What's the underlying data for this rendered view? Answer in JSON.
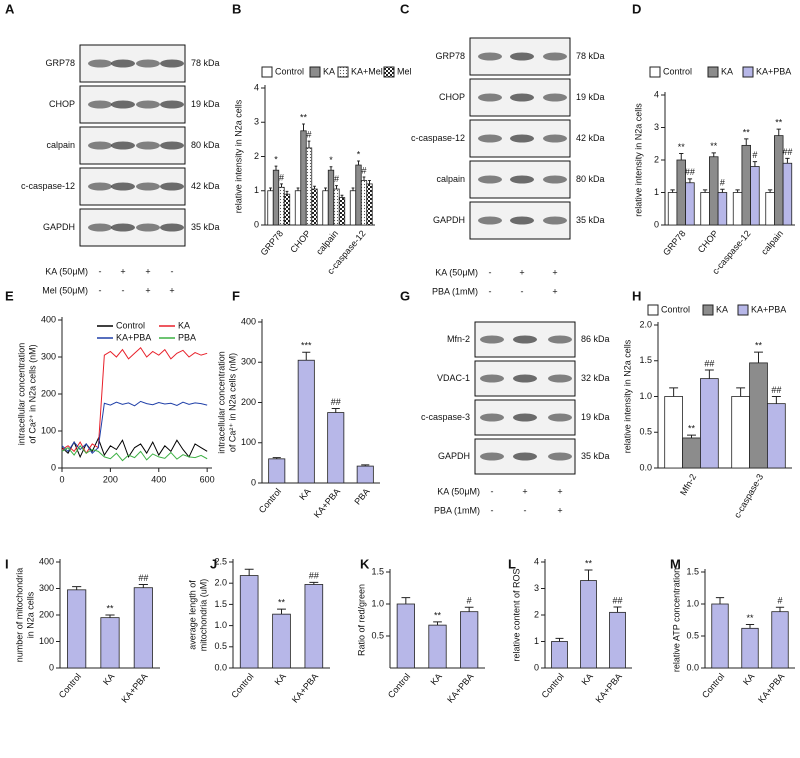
{
  "blots": [
    {
      "panel": "A",
      "rows": [
        {
          "label": "GRP78",
          "kda": "78 kDa"
        },
        {
          "label": "CHOP",
          "kda": "19 kDa"
        },
        {
          "label": "calpain",
          "kda": "80 kDa"
        },
        {
          "label": "c-caspase-12",
          "kda": "42 kDa"
        },
        {
          "label": "GAPDH",
          "kda": "35 kDa"
        }
      ],
      "treatments": [
        {
          "label": "KA (50μM)",
          "signs": [
            "-",
            "+",
            "+",
            "-"
          ]
        },
        {
          "label": "Mel (50μM)",
          "signs": [
            "-",
            "-",
            "+",
            "+"
          ]
        }
      ]
    },
    {
      "panel": "C",
      "rows": [
        {
          "label": "GRP78",
          "kda": "78 kDa"
        },
        {
          "label": "CHOP",
          "kda": "19 kDa"
        },
        {
          "label": "c-caspase-12",
          "kda": "42 kDa"
        },
        {
          "label": "calpain",
          "kda": "80 kDa"
        },
        {
          "label": "GAPDH",
          "kda": "35 kDa"
        }
      ],
      "treatments": [
        {
          "label": "KA (50μM)",
          "signs": [
            "-",
            "+",
            "+"
          ]
        },
        {
          "label": "PBA (1mM)",
          "signs": [
            "-",
            "-",
            "+"
          ]
        }
      ]
    },
    {
      "panel": "G",
      "rows": [
        {
          "label": "Mfn-2",
          "kda": "86 kDa"
        },
        {
          "label": "VDAC-1",
          "kda": "32 kDa"
        },
        {
          "label": "c-caspase-3",
          "kda": "19 kDa"
        },
        {
          "label": "GAPDH",
          "kda": "35 kDa"
        }
      ],
      "treatments": [
        {
          "label": "KA (50μM)",
          "signs": [
            "-",
            "+",
            "+"
          ]
        },
        {
          "label": "PBA (1mM)",
          "signs": [
            "-",
            "-",
            "+"
          ]
        }
      ]
    }
  ],
  "chart_data": [
    {
      "type": "bar",
      "panel": "B",
      "ylabel": [
        "relative intensity in N2a cells"
      ],
      "categories": [
        "GRP78",
        "CHOP",
        "calpain",
        "c-caspase-12"
      ],
      "ylim": [
        0,
        4
      ],
      "yticks": [
        0,
        1,
        2,
        3,
        4
      ],
      "series": [
        {
          "name": "Control",
          "color": "#ffffff",
          "values": [
            1.0,
            1.0,
            1.0,
            1.0
          ],
          "errors": [
            0.08,
            0.08,
            0.08,
            0.08
          ]
        },
        {
          "name": "KA",
          "color": "#8c8c8c",
          "values": [
            1.6,
            2.75,
            1.6,
            1.75
          ],
          "errors": [
            0.12,
            0.2,
            0.1,
            0.12
          ],
          "marks": [
            "*",
            "**",
            "*",
            "*"
          ]
        },
        {
          "name": "KA+Mel",
          "color": "#ffffff",
          "pattern": "dots",
          "values": [
            1.1,
            2.25,
            1.05,
            1.3
          ],
          "errors": [
            0.1,
            0.2,
            0.1,
            0.1
          ],
          "marks": [
            "#",
            "#",
            "#",
            "#"
          ]
        },
        {
          "name": "Mel",
          "color": "#ffffff",
          "pattern": "checker",
          "values": [
            0.9,
            1.05,
            0.8,
            1.2
          ],
          "errors": [
            0.08,
            0.08,
            0.07,
            0.1
          ]
        }
      ]
    },
    {
      "type": "bar",
      "panel": "D",
      "ylabel": [
        "relative intensity in N2a cells"
      ],
      "categories": [
        "GRP78",
        "CHOP",
        "c-caspase-12",
        "calpain"
      ],
      "ylim": [
        0,
        4
      ],
      "yticks": [
        0,
        1,
        2,
        3,
        4
      ],
      "series": [
        {
          "name": "Control",
          "color": "#ffffff",
          "values": [
            1.0,
            1.0,
            1.0,
            1.0
          ],
          "errors": [
            0.08,
            0.08,
            0.08,
            0.08
          ]
        },
        {
          "name": "KA",
          "color": "#8c8c8c",
          "values": [
            2.0,
            2.1,
            2.45,
            2.75
          ],
          "errors": [
            0.2,
            0.12,
            0.2,
            0.2
          ],
          "marks": [
            "**",
            "**",
            "**",
            "**"
          ]
        },
        {
          "name": "KA+PBA",
          "color": "#b7b7e8",
          "values": [
            1.3,
            1.0,
            1.8,
            1.9
          ],
          "errors": [
            0.12,
            0.1,
            0.15,
            0.15
          ],
          "marks": [
            "##",
            "#",
            "#",
            "##"
          ]
        }
      ]
    },
    {
      "type": "line",
      "panel": "E",
      "ylabel": [
        "intracellular concentration",
        "of Ca²⁺ in N2a cells (nM)"
      ],
      "xlim": [
        0,
        620
      ],
      "xticks": [
        0,
        200,
        400,
        600
      ],
      "ylim": [
        0,
        400
      ],
      "yticks": [
        0,
        100,
        200,
        300,
        400
      ],
      "x": [
        0,
        25,
        50,
        75,
        100,
        125,
        150,
        175,
        200,
        225,
        250,
        275,
        300,
        325,
        350,
        375,
        400,
        425,
        450,
        475,
        500,
        525,
        550,
        575,
        600
      ],
      "series": [
        {
          "name": "Control",
          "color": "#000000",
          "values": [
            55,
            40,
            70,
            30,
            65,
            45,
            80,
            35,
            60,
            50,
            75,
            30,
            55,
            65,
            40,
            70,
            35,
            60,
            45,
            75,
            50,
            30,
            65,
            55,
            45
          ]
        },
        {
          "name": "KA",
          "color": "#e8202a",
          "values": [
            50,
            60,
            45,
            70,
            40,
            65,
            55,
            305,
            315,
            300,
            320,
            295,
            310,
            325,
            300,
            315,
            305,
            320,
            295,
            310,
            318,
            300,
            312,
            305,
            310
          ]
        },
        {
          "name": "KA+PBA",
          "color": "#1f3fa8",
          "values": [
            60,
            45,
            70,
            50,
            65,
            40,
            55,
            175,
            170,
            178,
            172,
            176,
            168,
            180,
            174,
            171,
            177,
            173,
            175,
            169,
            178,
            172,
            176,
            174,
            170
          ]
        },
        {
          "name": "PBA",
          "color": "#3cb043",
          "values": [
            45,
            55,
            35,
            60,
            40,
            50,
            45,
            30,
            25,
            40,
            20,
            35,
            28,
            45,
            22,
            38,
            30,
            26,
            42,
            24,
            36,
            30,
            28,
            34,
            25
          ]
        }
      ]
    },
    {
      "type": "bar",
      "panel": "F",
      "ylabel": [
        "intracellular concentration",
        "of Ca²⁺ in N2a cells (nM)"
      ],
      "categories": [
        "Control",
        "KA",
        "KA+PBA",
        "PBA"
      ],
      "ylim": [
        0,
        400
      ],
      "yticks": [
        0,
        100,
        200,
        300,
        400
      ],
      "color": "#b7b7e8",
      "values": [
        60,
        305,
        175,
        42
      ],
      "errors": [
        3,
        20,
        10,
        3
      ],
      "marks": [
        null,
        "***",
        "##",
        null
      ]
    },
    {
      "type": "bar",
      "panel": "H",
      "ylabel": [
        "relative intensity in N2a cells"
      ],
      "categories": [
        "Mfn-2",
        "c-caspase-3"
      ],
      "ylim": [
        0,
        2
      ],
      "yticks": [
        {
          "value": 0,
          "label": "0.0"
        },
        {
          "value": 0.5,
          "label": "0.5"
        },
        {
          "value": 1,
          "label": "1.0"
        },
        {
          "value": 1.5,
          "label": "1.5"
        },
        {
          "value": 2,
          "label": "2.0"
        }
      ],
      "series": [
        {
          "name": "Control",
          "color": "#ffffff",
          "values": [
            1.0,
            1.0
          ],
          "errors": [
            0.12,
            0.12
          ]
        },
        {
          "name": "KA",
          "color": "#8c8c8c",
          "values": [
            0.42,
            1.47
          ],
          "errors": [
            0.04,
            0.15
          ],
          "marks": [
            "**",
            "**"
          ]
        },
        {
          "name": "KA+PBA",
          "color": "#b7b7e8",
          "values": [
            1.25,
            0.9
          ],
          "errors": [
            0.12,
            0.1
          ],
          "marks": [
            "##",
            "##"
          ]
        }
      ]
    },
    {
      "type": "bar",
      "panel": "I",
      "ylabel": [
        "number of mitochondria",
        "in N2a cells"
      ],
      "categories": [
        "Control",
        "KA",
        "KA+PBA"
      ],
      "ylim": [
        0,
        400
      ],
      "yticks": [
        0,
        100,
        200,
        300,
        400
      ],
      "color": "#b7b7e8",
      "values": [
        295,
        190,
        303
      ],
      "errors": [
        12,
        10,
        12
      ],
      "marks": [
        null,
        "**",
        "##"
      ]
    },
    {
      "type": "bar",
      "panel": "J",
      "ylabel": [
        "average length of",
        "mitochondria (uM)"
      ],
      "categories": [
        "Control",
        "KA",
        "KA+PBA"
      ],
      "ylim": [
        0,
        2.5
      ],
      "yticks": [
        {
          "value": 0,
          "label": "0.0"
        },
        {
          "value": 0.5,
          "label": "0.5"
        },
        {
          "value": 1,
          "label": "1.0"
        },
        {
          "value": 1.5,
          "label": "1.5"
        },
        {
          "value": 2,
          "label": "2.0"
        },
        {
          "value": 2.5,
          "label": "2.5"
        }
      ],
      "color": "#b7b7e8",
      "values": [
        2.18,
        1.27,
        1.97
      ],
      "errors": [
        0.15,
        0.12,
        0.05
      ],
      "marks": [
        null,
        "**",
        "##"
      ]
    },
    {
      "type": "bar",
      "panel": "K",
      "ylabel": [
        "Ratio of red/green"
      ],
      "categories": [
        "Control",
        "KA",
        "KA+PBA"
      ],
      "ylim": [
        0,
        1.5
      ],
      "yticks": [
        {
          "value": 0.5,
          "label": "0.5"
        },
        {
          "value": 1,
          "label": "1.0"
        },
        {
          "value": 1.5,
          "label": "1.5"
        }
      ],
      "color": "#b7b7e8",
      "values": [
        1.0,
        0.67,
        0.88
      ],
      "errors": [
        0.1,
        0.05,
        0.07
      ],
      "marks": [
        null,
        "**",
        "#"
      ]
    },
    {
      "type": "bar",
      "panel": "L",
      "ylabel": [
        "relative content of ROS"
      ],
      "categories": [
        "Control",
        "KA",
        "KA+PBA"
      ],
      "ylim": [
        0,
        4
      ],
      "yticks": [
        0,
        1,
        2,
        3,
        4
      ],
      "color": "#b7b7e8",
      "values": [
        1.0,
        3.3,
        2.1
      ],
      "errors": [
        0.12,
        0.4,
        0.2
      ],
      "marks": [
        null,
        "**",
        "##"
      ]
    },
    {
      "type": "bar",
      "panel": "M",
      "ylabel": [
        "relative ATP concentration"
      ],
      "categories": [
        "Control",
        "KA",
        "KA+PBA"
      ],
      "ylim": [
        0,
        1.5
      ],
      "yticks": [
        {
          "value": 0,
          "label": "0.0"
        },
        {
          "value": 0.5,
          "label": "0.5"
        },
        {
          "value": 1,
          "label": "1.0"
        },
        {
          "value": 1.5,
          "label": "1.5"
        }
      ],
      "color": "#b7b7e8",
      "values": [
        1.0,
        0.62,
        0.88
      ],
      "errors": [
        0.1,
        0.06,
        0.07
      ],
      "marks": [
        null,
        "**",
        "#"
      ]
    }
  ]
}
